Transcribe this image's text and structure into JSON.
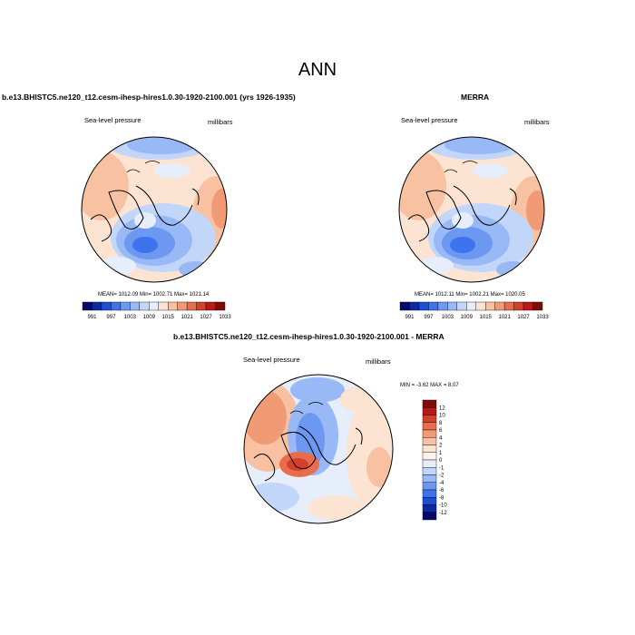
{
  "figure_title": "ANN",
  "chart_data": [
    {
      "type": "heatmap",
      "projection": "north-polar-stereographic",
      "title": "b.e13.BHISTC5.ne120_t12.cesm-ihesp-hires1.0.30-1920-2100.001 (yrs 1926-1935)",
      "variable_label": "Sea-level pressure",
      "units_label": "millibars",
      "stats": "MEAN= 1012.09  Min= 1002.71  Max= 1021.14",
      "mean": 1012.09,
      "min": 1002.71,
      "max": 1021.14,
      "colorbar": {
        "levels": [
          "991",
          "997",
          "1003",
          "1009",
          "1015",
          "1021",
          "1027",
          "1033"
        ],
        "colors": [
          "#08086b",
          "#0b2a9e",
          "#1c4fd6",
          "#3d74ee",
          "#6c98f2",
          "#98b9f6",
          "#c2d6fa",
          "#e6eefc",
          "#fde4d2",
          "#f8c2a2",
          "#f19b76",
          "#e86d4c",
          "#d4412b",
          "#b71a17",
          "#7e0a0a"
        ]
      }
    },
    {
      "type": "heatmap",
      "projection": "north-polar-stereographic",
      "title": "MERRA",
      "variable_label": "Sea-level pressure",
      "units_label": "millibars",
      "stats": "MEAN= 1012.11  Min= 1002.21  Max= 1020.05",
      "mean": 1012.11,
      "min": 1002.21,
      "max": 1020.05,
      "colorbar": {
        "levels": [
          "991",
          "997",
          "1003",
          "1009",
          "1015",
          "1021",
          "1027",
          "1033"
        ],
        "colors": [
          "#08086b",
          "#0b2a9e",
          "#1c4fd6",
          "#3d74ee",
          "#6c98f2",
          "#98b9f6",
          "#c2d6fa",
          "#e6eefc",
          "#fde4d2",
          "#f8c2a2",
          "#f19b76",
          "#e86d4c",
          "#d4412b",
          "#b71a17",
          "#7e0a0a"
        ]
      }
    },
    {
      "type": "heatmap",
      "projection": "north-polar-stereographic",
      "title": "b.e13.BHISTC5.ne120_t12.cesm-ihesp-hires1.0.30-1920-2100.001 - MERRA",
      "variable_label": "Sea-level pressure",
      "units_label": "millibars",
      "stats": "MIN =  -3.62 MAX =   8.07",
      "min": -3.62,
      "max": 8.07,
      "colorbar": {
        "levels": [
          "12",
          "10",
          "8",
          "6",
          "4",
          "2",
          "1",
          "0",
          "-1",
          "-2",
          "-4",
          "-6",
          "-8",
          "-10",
          "-12"
        ],
        "colors": [
          "#7e0a0a",
          "#b71a17",
          "#d4412b",
          "#e86d4c",
          "#f19b76",
          "#f8c2a2",
          "#fde4d2",
          "#fdf3ec",
          "#e6eefc",
          "#c2d6fa",
          "#98b9f6",
          "#6c98f2",
          "#3d74ee",
          "#1c4fd6",
          "#0b2a9e",
          "#08086b"
        ]
      }
    }
  ]
}
